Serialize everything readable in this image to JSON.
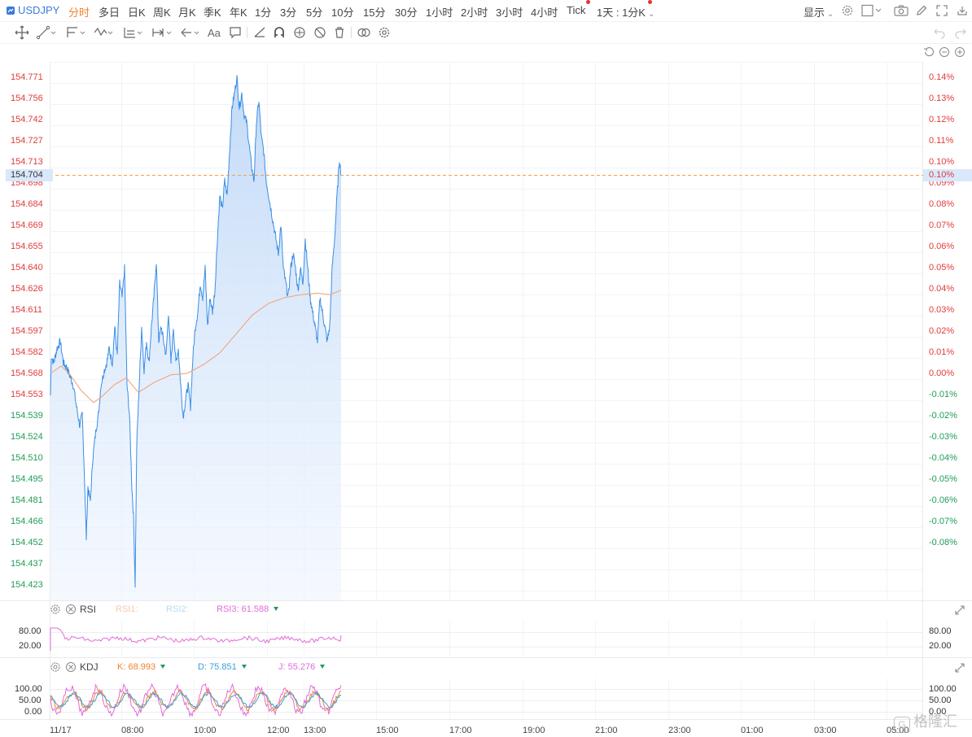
{
  "symbol": "USDJPY",
  "timeframes": [
    {
      "label": "分时",
      "active": true
    },
    {
      "label": "多日"
    },
    {
      "label": "日K"
    },
    {
      "label": "周K"
    },
    {
      "label": "月K"
    },
    {
      "label": "季K"
    },
    {
      "label": "年K"
    },
    {
      "label": "1分"
    },
    {
      "label": "3分"
    },
    {
      "label": "5分"
    },
    {
      "label": "10分"
    },
    {
      "label": "15分"
    },
    {
      "label": "30分"
    },
    {
      "label": "1小时"
    },
    {
      "label": "2小时"
    },
    {
      "label": "3小时"
    },
    {
      "label": "4小时"
    },
    {
      "label": "Tick"
    },
    {
      "label": "1天 : 1分K"
    }
  ],
  "display_label": "显示",
  "colors": {
    "up": "#e23b3b",
    "down": "#1f9d55",
    "active_tab": "#f0822e",
    "price_line": "#3a8ee6",
    "avg_line": "#f0a070",
    "rsi_line": "#e06cd8",
    "k_color": "#f0822e",
    "d_color": "#3aa0d8",
    "j_color": "#e06cd8"
  },
  "main_chart": {
    "y_labels_left": [
      "154.771",
      "154.756",
      "154.742",
      "154.727",
      "154.713",
      "154.698",
      "154.684",
      "154.669",
      "154.655",
      "154.640",
      "154.626",
      "154.611",
      "154.597",
      "154.582",
      "154.568",
      "154.553",
      "154.539",
      "154.524",
      "154.510",
      "154.495",
      "154.481",
      "154.466",
      "154.452",
      "154.437",
      "154.423"
    ],
    "y_labels_right": [
      "0.14%",
      "0.13%",
      "0.12%",
      "0.11%",
      "0.10%",
      "0.09%",
      "0.08%",
      "0.07%",
      "0.06%",
      "0.05%",
      "0.04%",
      "0.03%",
      "0.02%",
      "0.01%",
      "0.00%",
      "-0.01%",
      "-0.02%",
      "-0.03%",
      "-0.04%",
      "-0.05%",
      "-0.06%",
      "-0.07%",
      "-0.08%"
    ],
    "current_price": "154.704",
    "current_pct": "0.10%"
  },
  "rsi": {
    "name": "RSI",
    "rsi1_label": "RSI1:",
    "rsi2_label": "RSI2:",
    "rsi3_label": "RSI3:",
    "rsi3_value": "61.588",
    "levels": [
      "80.00",
      "20.00"
    ]
  },
  "kdj": {
    "name": "KDJ",
    "k_label": "K:",
    "k_value": "68.993",
    "d_label": "D:",
    "d_value": "75.851",
    "j_label": "J:",
    "j_value": "55.276",
    "levels": [
      "100.00",
      "50.00",
      "0.00"
    ]
  },
  "x_labels": [
    "11/17",
    "08:00",
    "10:00",
    "12:00",
    "13:00",
    "15:00",
    "17:00",
    "19:00",
    "21:00",
    "23:00",
    "01:00",
    "03:00",
    "05:00"
  ],
  "watermark": "格隆汇"
}
